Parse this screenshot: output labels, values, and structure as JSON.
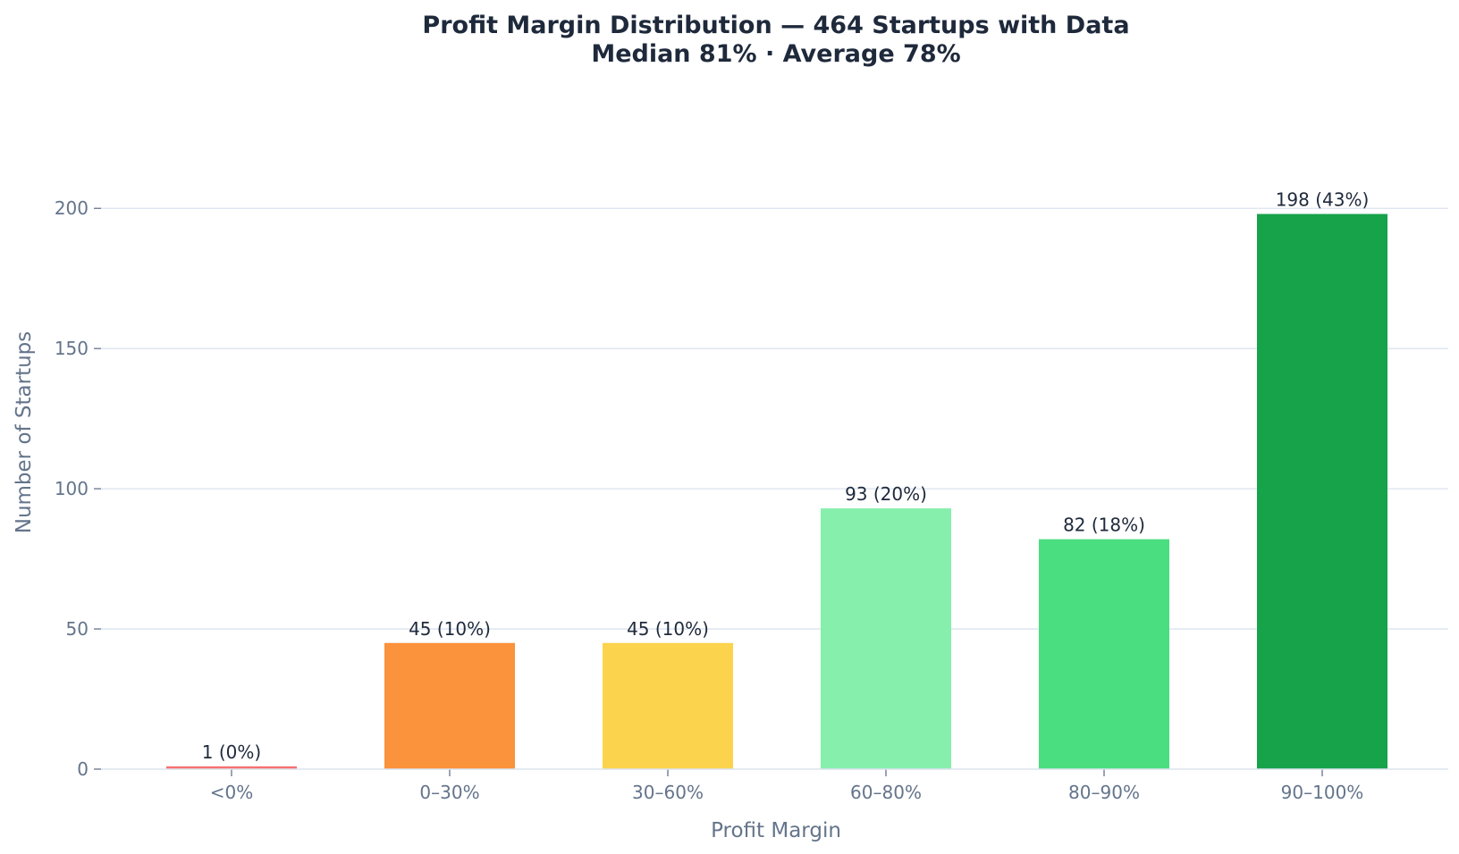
{
  "chart_data": {
    "type": "bar",
    "title": "Profit Margin Distribution — 464 Startups with Data",
    "subtitle": "Median 81% · Average 78%",
    "xlabel": "Profit Margin",
    "ylabel": "Number of Startups",
    "categories": [
      "<0%",
      "0–30%",
      "30–60%",
      "60–80%",
      "80–90%",
      "90–100%"
    ],
    "values": [
      1,
      45,
      45,
      93,
      82,
      198
    ],
    "data_labels": [
      "1  (0%)",
      "45  (10%)",
      "45  (10%)",
      "93  (20%)",
      "82  (18%)",
      "198  (43%)"
    ],
    "colors": [
      "#f87171",
      "#fb923c",
      "#fcd34d",
      "#86efac",
      "#4ade80",
      "#16a34a"
    ],
    "y_ticks": [
      0,
      50,
      100,
      150,
      200
    ],
    "y_tick_labels": [
      "0",
      "50",
      "100",
      "150",
      "200"
    ],
    "ylim": [
      0,
      209
    ],
    "grid": "horizontal",
    "gridline_color": "#dbe3ee",
    "legend": "none"
  }
}
